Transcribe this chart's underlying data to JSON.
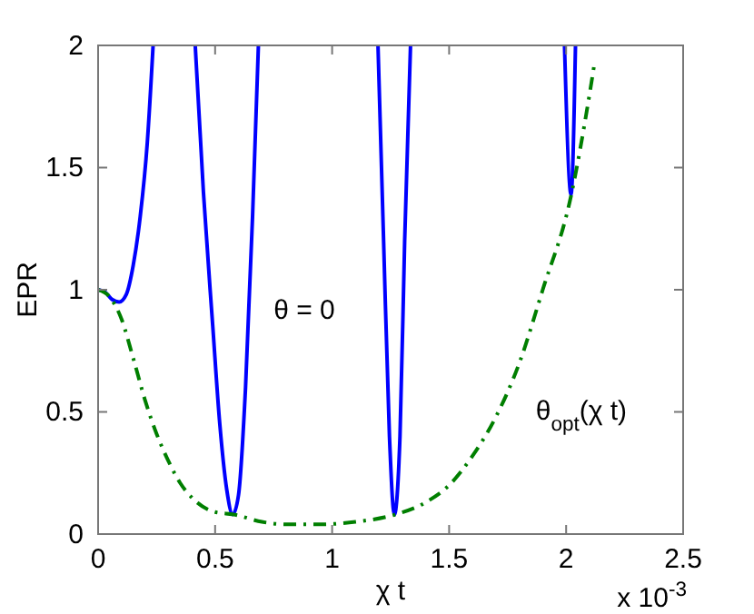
{
  "chart_data": {
    "type": "line",
    "xlabel": "χ t",
    "ylabel": "EPR",
    "xlim": [
      0,
      2.5
    ],
    "ylim": [
      0,
      2
    ],
    "xticks": [
      0,
      0.5,
      1,
      1.5,
      2,
      2.5
    ],
    "yticks": [
      0,
      0.5,
      1,
      1.5,
      2
    ],
    "grid": false,
    "marker": "none",
    "annotations": [
      "x 10$^{-3}$"
    ],
    "series": [
      {
        "name": "θ = 0",
        "color": "#0000ff",
        "line_style": "solid",
        "x": [
          0,
          0.03,
          0.06,
          0.09,
          0.12,
          0.15,
          0.18,
          0.21,
          0.235,
          0.3,
          0.415,
          0.45,
          0.49,
          0.52,
          0.55,
          0.575,
          0.6,
          0.63,
          0.66,
          0.685,
          0.9,
          1.196,
          1.22,
          1.245,
          1.266,
          1.29,
          1.31,
          1.335,
          1.6,
          1.993,
          2.021,
          2.04
        ],
        "values": [
          1.0,
          0.99,
          0.96,
          0.95,
          0.98,
          1.1,
          1.3,
          1.6,
          2.0,
          null,
          2.0,
          1.4,
          0.85,
          0.45,
          0.18,
          0.08,
          0.16,
          0.6,
          1.3,
          2.0,
          null,
          2.0,
          1.2,
          0.4,
          0.08,
          0.4,
          1.2,
          2.0,
          null,
          2.0,
          1.39,
          2.0
        ]
      },
      {
        "name": "θ$_{opt}$(χ t)",
        "color": "#007f00",
        "line_style": "dashed",
        "x": [
          0,
          0.05,
          0.1,
          0.15,
          0.2,
          0.25,
          0.3,
          0.35,
          0.4,
          0.5,
          0.58,
          0.7,
          0.8,
          0.95,
          1.1,
          1.27,
          1.4,
          1.5,
          1.6,
          1.7,
          1.8,
          1.9,
          2.02,
          2.1,
          2.12
        ],
        "values": [
          1.0,
          0.97,
          0.88,
          0.72,
          0.55,
          0.41,
          0.3,
          0.21,
          0.15,
          0.09,
          0.08,
          0.05,
          0.04,
          0.04,
          0.05,
          0.08,
          0.13,
          0.2,
          0.32,
          0.48,
          0.7,
          1.0,
          1.38,
          1.8,
          1.92
        ]
      }
    ]
  }
}
